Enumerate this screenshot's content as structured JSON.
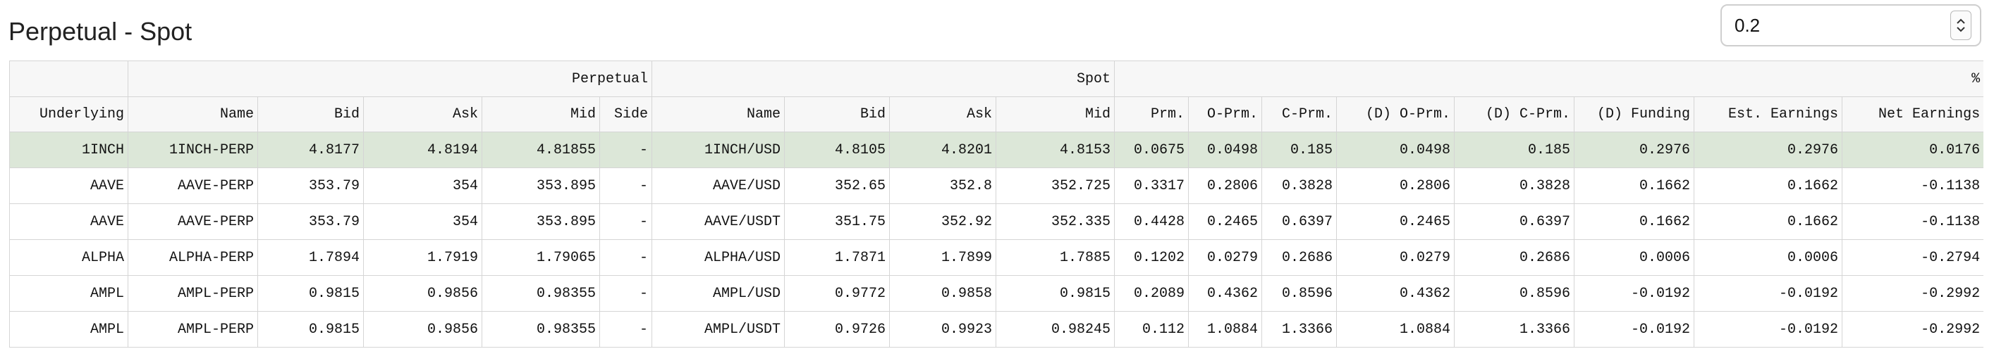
{
  "page_title": "Perpetual - Spot",
  "threshold_input": {
    "value": "0.2"
  },
  "icons": {
    "stepper": "up-down-chevron-icon"
  },
  "colors": {
    "highlight_row": "#dce7d8",
    "header_bg": "#f7f7f7",
    "border": "#d5d5d5"
  },
  "table": {
    "group_headers": [
      "",
      "Perpetual",
      "Spot",
      "%"
    ],
    "columns": [
      "Underlying",
      "Name",
      "Bid",
      "Ask",
      "Mid",
      "Side",
      "Name",
      "Bid",
      "Ask",
      "Mid",
      "Prm.",
      "O-Prm.",
      "C-Prm.",
      "(D) O-Prm.",
      "(D) C-Prm.",
      "(D) Funding",
      "Est. Earnings",
      "Net Earnings"
    ],
    "rows": [
      [
        "1INCH",
        "1INCH-PERP",
        "4.8177",
        "4.8194",
        "4.81855",
        "-",
        "1INCH/USD",
        "4.8105",
        "4.8201",
        "4.8153",
        "0.0675",
        "0.0498",
        "0.185",
        "0.0498",
        "0.185",
        "0.2976",
        "0.2976",
        "0.0176"
      ],
      [
        "AAVE",
        "AAVE-PERP",
        "353.79",
        "354",
        "353.895",
        "-",
        "AAVE/USD",
        "352.65",
        "352.8",
        "352.725",
        "0.3317",
        "0.2806",
        "0.3828",
        "0.2806",
        "0.3828",
        "0.1662",
        "0.1662",
        "-0.1138"
      ],
      [
        "AAVE",
        "AAVE-PERP",
        "353.79",
        "354",
        "353.895",
        "-",
        "AAVE/USDT",
        "351.75",
        "352.92",
        "352.335",
        "0.4428",
        "0.2465",
        "0.6397",
        "0.2465",
        "0.6397",
        "0.1662",
        "0.1662",
        "-0.1138"
      ],
      [
        "ALPHA",
        "ALPHA-PERP",
        "1.7894",
        "1.7919",
        "1.79065",
        "-",
        "ALPHA/USD",
        "1.7871",
        "1.7899",
        "1.7885",
        "0.1202",
        "0.0279",
        "0.2686",
        "0.0279",
        "0.2686",
        "0.0006",
        "0.0006",
        "-0.2794"
      ],
      [
        "AMPL",
        "AMPL-PERP",
        "0.9815",
        "0.9856",
        "0.98355",
        "-",
        "AMPL/USD",
        "0.9772",
        "0.9858",
        "0.9815",
        "0.2089",
        "0.4362",
        "0.8596",
        "0.4362",
        "0.8596",
        "-0.0192",
        "-0.0192",
        "-0.2992"
      ],
      [
        "AMPL",
        "AMPL-PERP",
        "0.9815",
        "0.9856",
        "0.98355",
        "-",
        "AMPL/USDT",
        "0.9726",
        "0.9923",
        "0.98245",
        "0.112",
        "1.0884",
        "1.3366",
        "1.0884",
        "1.3366",
        "-0.0192",
        "-0.0192",
        "-0.2992"
      ]
    ],
    "highlighted_row_index": 0
  }
}
